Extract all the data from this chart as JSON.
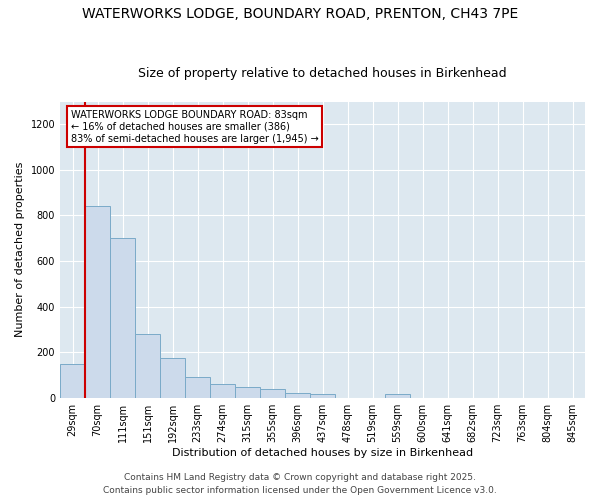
{
  "title_line1": "WATERWORKS LODGE, BOUNDARY ROAD, PRENTON, CH43 7PE",
  "title_line2": "Size of property relative to detached houses in Birkenhead",
  "xlabel": "Distribution of detached houses by size in Birkenhead",
  "ylabel": "Number of detached properties",
  "bar_labels": [
    "29sqm",
    "70sqm",
    "111sqm",
    "151sqm",
    "192sqm",
    "233sqm",
    "274sqm",
    "315sqm",
    "355sqm",
    "396sqm",
    "437sqm",
    "478sqm",
    "519sqm",
    "559sqm",
    "600sqm",
    "641sqm",
    "682sqm",
    "723sqm",
    "763sqm",
    "804sqm",
    "845sqm"
  ],
  "bar_values": [
    150,
    840,
    700,
    280,
    175,
    90,
    60,
    45,
    38,
    20,
    15,
    0,
    0,
    15,
    0,
    0,
    0,
    0,
    0,
    0,
    0
  ],
  "bar_color": "#ccdaeb",
  "bar_edge_color": "#7aaac8",
  "bg_color": "#dde8f0",
  "fig_bg_color": "#ffffff",
  "annotation_text": "WATERWORKS LODGE BOUNDARY ROAD: 83sqm\n← 16% of detached houses are smaller (386)\n83% of semi-detached houses are larger (1,945) →",
  "annotation_box_color": "#ffffff",
  "annotation_border_color": "#cc0000",
  "red_line_color": "#cc0000",
  "footer_line1": "Contains HM Land Registry data © Crown copyright and database right 2025.",
  "footer_line2": "Contains public sector information licensed under the Open Government Licence v3.0.",
  "ylim": [
    0,
    1300
  ],
  "yticks": [
    0,
    200,
    400,
    600,
    800,
    1000,
    1200
  ],
  "title_fontsize": 10,
  "subtitle_fontsize": 9,
  "axis_label_fontsize": 8,
  "tick_fontsize": 7,
  "footer_fontsize": 6.5
}
